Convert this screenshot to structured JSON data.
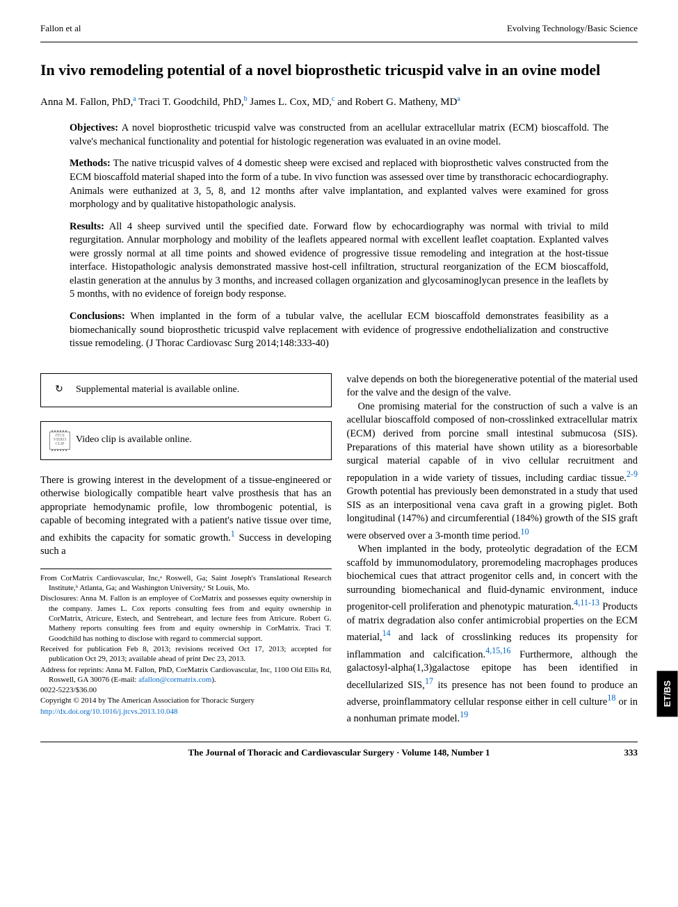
{
  "header": {
    "left": "Fallon et al",
    "right": "Evolving Technology/Basic Science"
  },
  "title": "In vivo remodeling potential of a novel bioprosthetic tricuspid valve in an ovine model",
  "authors_html": "Anna M. Fallon, PhD,<sup>a</sup> Traci T. Goodchild, PhD,<sup>b</sup> James L. Cox, MD,<sup>c</sup> and Robert G. Matheny, MD<sup>a</sup>",
  "abstract": {
    "objectives": {
      "label": "Objectives:",
      "text": "A novel bioprosthetic tricuspid valve was constructed from an acellular extracellular matrix (ECM) bioscaffold. The valve's mechanical functionality and potential for histologic regeneration was evaluated in an ovine model."
    },
    "methods": {
      "label": "Methods:",
      "text": "The native tricuspid valves of 4 domestic sheep were excised and replaced with bioprosthetic valves constructed from the ECM bioscaffold material shaped into the form of a tube. In vivo function was assessed over time by transthoracic echocardiography. Animals were euthanized at 3, 5, 8, and 12 months after valve implantation, and explanted valves were examined for gross morphology and by qualitative histopathologic analysis."
    },
    "results": {
      "label": "Results:",
      "text": "All 4 sheep survived until the specified date. Forward flow by echocardiography was normal with trivial to mild regurgitation. Annular morphology and mobility of the leaflets appeared normal with excellent leaflet coaptation. Explanted valves were grossly normal at all time points and showed evidence of progressive tissue remodeling and integration at the host-tissue interface. Histopathologic analysis demonstrated massive host-cell infiltration, structural reorganization of the ECM bioscaffold, elastin generation at the annulus by 3 months, and increased collagen organization and glycosaminoglycan presence in the leaflets by 5 months, with no evidence of foreign body response."
    },
    "conclusions": {
      "label": "Conclusions:",
      "text": "When implanted in the form of a tubular valve, the acellular ECM bioscaffold demonstrates feasibility as a biomechanically sound bioprosthetic tricuspid valve replacement with evidence of progressive endothelialization and constructive tissue remodeling. (J Thorac Cardiovasc Surg 2014;148:333-40)"
    }
  },
  "supplemental_box": {
    "icon": "↻",
    "text": "Supplemental material is available online."
  },
  "video_box": {
    "icon_label": "JTCS\nVIDEO\nCLIP",
    "text": "Video clip is available online."
  },
  "body": {
    "left_p1_a": "There is growing interest in the development of a tissue-engineered or otherwise biologically compatible heart valve prosthesis that has an appropriate hemodynamic profile, low thrombogenic potential, is capable of becoming integrated with a patient's native tissue over time, and exhibits the capacity for somatic growth.",
    "ref1": "1",
    "left_p1_b": " Success in developing such a",
    "right_p1": "valve depends on both the bioregenerative potential of the material used for the valve and the design of the valve.",
    "right_p2_a": "One promising material for the construction of such a valve is an acellular bioscaffold composed of non-crosslinked extracellular matrix (ECM) derived from porcine small intestinal submucosa (SIS). Preparations of this material have shown utility as a bioresorbable surgical material capable of in vivo cellular recruitment and repopulation in a wide variety of tissues, including cardiac tissue.",
    "ref2_9": "2-9",
    "right_p2_b": " Growth potential has previously been demonstrated in a study that used SIS as an interpositional vena cava graft in a growing piglet. Both longitudinal (147%) and circumferential (184%) growth of the SIS graft were observed over a 3-month time period.",
    "ref10": "10",
    "right_p3_a": "When implanted in the body, proteolytic degradation of the ECM scaffold by immunomodulatory, proremodeling macrophages produces biochemical cues that attract progenitor cells and, in concert with the surrounding biomechanical and fluid-dynamic environment, induce progenitor-cell proliferation and phenotypic maturation.",
    "ref4_11_13": "4,11-13",
    "right_p3_b": " Products of matrix degradation also confer antimicrobial properties on the ECM material,",
    "ref14": "14",
    "right_p3_c": " and lack of crosslinking reduces its propensity for inflammation and calcification.",
    "ref4_15_16": "4,15,16",
    "right_p3_d": " Furthermore, although the galactosyl-alpha(1,3)galactose epitope has been identified in decellularized SIS,",
    "ref17": "17",
    "right_p3_e": " its presence has not been found to produce an adverse, proinflammatory cellular response either in cell culture",
    "ref18": "18",
    "right_p3_f": " or in a nonhuman primate model.",
    "ref19": "19"
  },
  "footnotes": {
    "from": "From CorMatrix Cardiovascular, Inc,ᵃ Roswell, Ga; Saint Joseph's Translational Research Institute,ᵇ Atlanta, Ga; and Washington University,ᶜ St Louis, Mo.",
    "disclosures": "Disclosures: Anna M. Fallon is an employee of CorMatrix and possesses equity ownership in the company. James L. Cox reports consulting fees from and equity ownership in CorMatrix, Atricure, Estech, and Sentreheart, and lecture fees from Atricure. Robert G. Matheny reports consulting fees from and equity ownership in CorMatrix. Traci T. Goodchild has nothing to disclose with regard to commercial support.",
    "received": "Received for publication Feb 8, 2013; revisions received Oct 17, 2013; accepted for publication Oct 29, 2013; available ahead of print Dec 23, 2013.",
    "address_a": "Address for reprints: Anna M. Fallon, PhD, CorMatrix Cardiovascular, Inc, 1100 Old Ellis Rd, Roswell, GA 30076 (E-mail: ",
    "email": "afallon@cormatrix.com",
    "address_b": ").",
    "code": "0022-5223/$36.00",
    "copyright": "Copyright © 2014 by The American Association for Thoracic Surgery",
    "doi": "http://dx.doi.org/10.1016/j.jtcvs.2013.10.048"
  },
  "side_tab": "ET/BS",
  "footer": {
    "journal": "The Journal of Thoracic and Cardiovascular Surgery · Volume 148, Number 1",
    "page": "333"
  },
  "colors": {
    "link": "#0066cc",
    "text": "#000000",
    "tab_bg": "#000000",
    "tab_fg": "#ffffff"
  }
}
